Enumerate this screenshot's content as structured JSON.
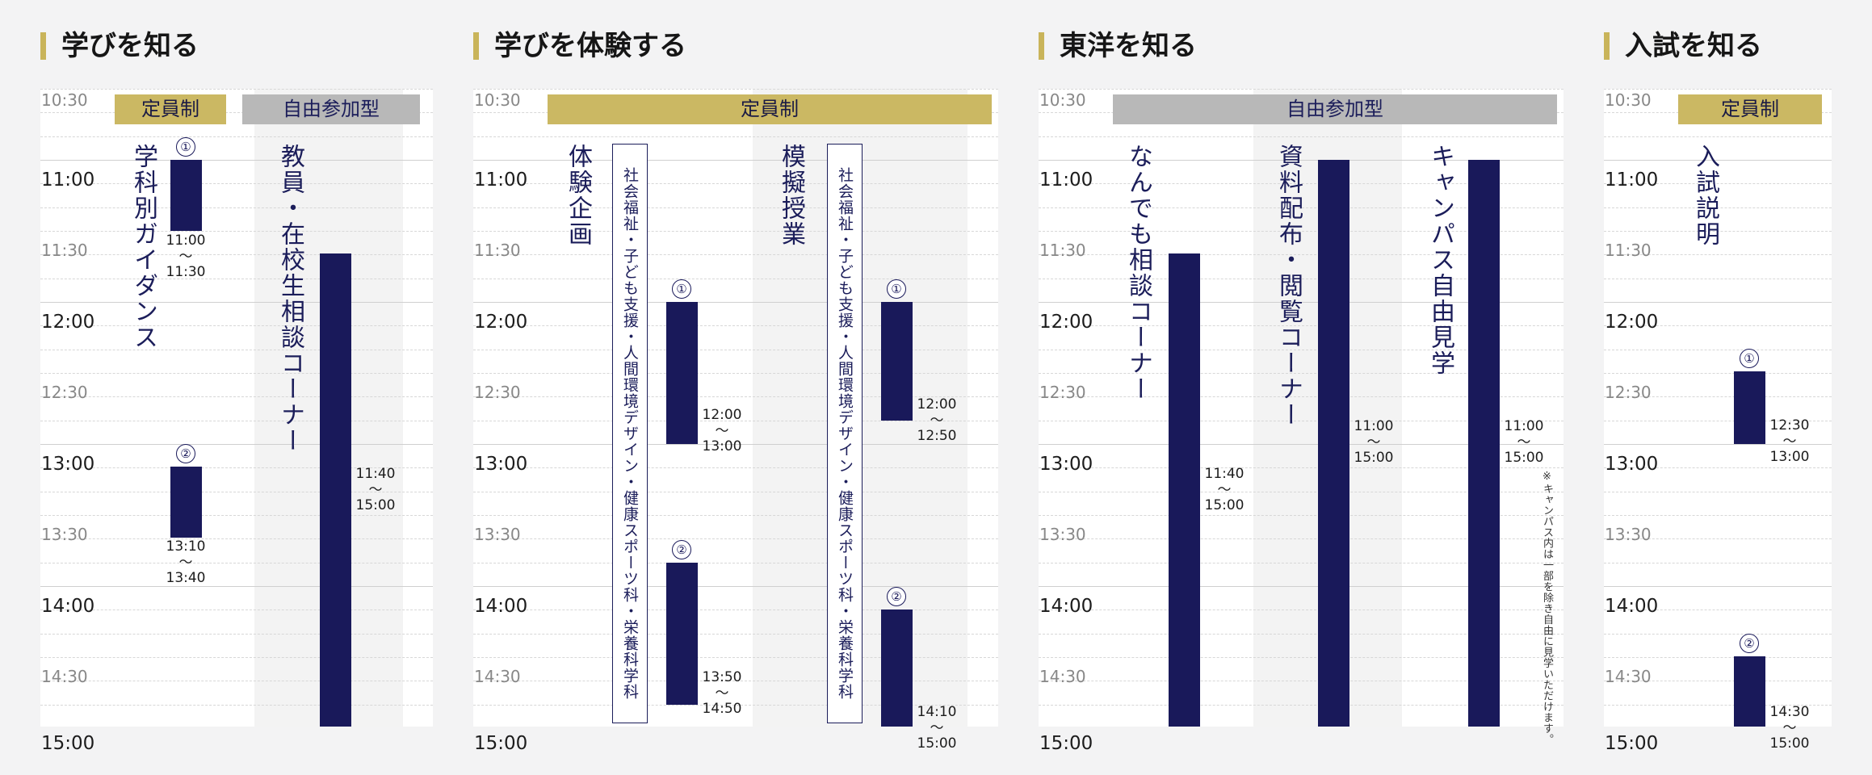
{
  "sections": [
    {
      "title": "学びを知る"
    },
    {
      "title": "学びを体験する"
    },
    {
      "title": "東洋を知る"
    },
    {
      "title": "入試を知る"
    }
  ],
  "times": [
    "10:30",
    "11:00",
    "11:30",
    "12:00",
    "12:30",
    "13:00",
    "13:30",
    "14:00",
    "14:30",
    "15:00"
  ],
  "headers": {
    "teiin": "定員制",
    "jiyu": "自由参加型"
  },
  "circles": {
    "one": "①",
    "two": "②"
  },
  "tilde": "〜",
  "s1": {
    "guidance": "学科別ガイダンス",
    "sodan": "教員・在校生相談コーナー",
    "b1": [
      "11:00",
      "11:30"
    ],
    "b2": [
      "13:10",
      "13:40"
    ],
    "b3": [
      "11:40",
      "15:00"
    ]
  },
  "s2": {
    "taiken": "体験企画",
    "mogi": "模擬授業",
    "dept": "社会福祉・子ども支援・人間環境デザイン・健康スポーツ科・栄養科学科",
    "t1": [
      "12:00",
      "13:00"
    ],
    "t2": [
      "13:50",
      "14:50"
    ],
    "m1": [
      "12:00",
      "12:50"
    ],
    "m2": [
      "14:10",
      "15:00"
    ]
  },
  "s3": {
    "nandemo": "なんでも相談コーナー",
    "shiryo": "資料配布・閲覧コーナー",
    "campus": "キャンパス自由見学",
    "note": "※キャンパス内は一部を除き自由に見学いただけます。",
    "n1": [
      "11:40",
      "15:00"
    ],
    "r1": [
      "11:00",
      "15:00"
    ],
    "c1": [
      "11:00",
      "15:00"
    ]
  },
  "s4": {
    "setsumei": "入試説明",
    "e1": [
      "12:30",
      "13:00"
    ],
    "e2": [
      "14:30",
      "15:00"
    ]
  }
}
